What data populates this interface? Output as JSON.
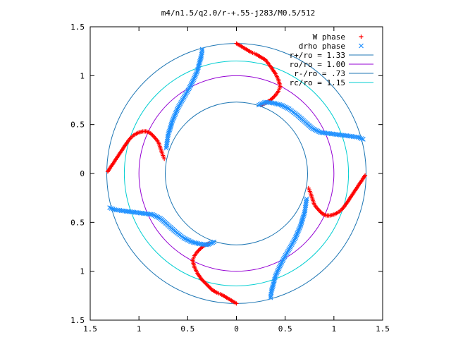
{
  "chart_data": {
    "type": "scatter",
    "title": "m4/n1.5/q2.0/r-+.55-j283/M0.5/512",
    "xlabel": "",
    "ylabel": "",
    "xlim": [
      -1.5,
      1.5
    ],
    "ylim": [
      -1.5,
      1.5
    ],
    "x_tick_values": [
      -1.5,
      -1,
      -0.5,
      0,
      0.5,
      1,
      1.5
    ],
    "x_tick_labels": [
      "1.5",
      "1",
      "0.5",
      "0",
      "0.5",
      "1",
      "1.5"
    ],
    "y_tick_values": [
      1.5,
      1,
      0.5,
      0,
      -0.5,
      -1,
      -1.5
    ],
    "y_tick_labels": [
      "1.5",
      "1",
      "0.5",
      "0",
      "0.5",
      "1",
      "1.5"
    ],
    "grid": false,
    "legend_position": "top-right",
    "series": [
      {
        "name": "W phase",
        "kind": "points",
        "marker": "plus",
        "color": "#ff0000",
        "arms": [
          {
            "x": [
              0.0,
              0.05,
              0.1,
              0.15,
              0.2,
              0.25,
              0.3,
              0.33,
              0.36,
              0.4,
              0.43,
              0.45,
              0.43,
              0.4,
              0.36,
              0.3,
              0.25
            ],
            "y": [
              1.33,
              1.3,
              1.27,
              1.24,
              1.22,
              1.19,
              1.16,
              1.12,
              1.08,
              1.02,
              0.96,
              0.89,
              0.84,
              0.8,
              0.76,
              0.72,
              0.7
            ]
          },
          {
            "x": [
              1.32,
              1.28,
              1.24,
              1.2,
              1.16,
              1.12,
              1.08,
              1.04,
              1.0,
              0.96,
              0.92,
              0.88,
              0.84,
              0.8,
              0.78,
              0.76,
              0.74
            ],
            "y": [
              -0.02,
              -0.08,
              -0.14,
              -0.2,
              -0.26,
              -0.32,
              -0.37,
              -0.4,
              -0.42,
              -0.43,
              -0.43,
              -0.41,
              -0.37,
              -0.32,
              -0.26,
              -0.2,
              -0.15
            ]
          },
          {
            "x": [
              0.0,
              -0.05,
              -0.1,
              -0.15,
              -0.2,
              -0.25,
              -0.28,
              -0.32,
              -0.36,
              -0.4,
              -0.43,
              -0.45,
              -0.43,
              -0.4,
              -0.36,
              -0.32,
              -0.28
            ],
            "y": [
              -1.33,
              -1.3,
              -1.27,
              -1.24,
              -1.22,
              -1.19,
              -1.16,
              -1.12,
              -1.08,
              -1.02,
              -0.96,
              -0.89,
              -0.84,
              -0.8,
              -0.76,
              -0.73,
              -0.72
            ]
          },
          {
            "x": [
              -1.32,
              -1.28,
              -1.24,
              -1.2,
              -1.16,
              -1.12,
              -1.08,
              -1.04,
              -1.0,
              -0.96,
              -0.92,
              -0.88,
              -0.84,
              -0.8,
              -0.78,
              -0.76,
              -0.74
            ],
            "y": [
              0.02,
              0.08,
              0.14,
              0.2,
              0.26,
              0.32,
              0.37,
              0.4,
              0.42,
              0.43,
              0.43,
              0.41,
              0.37,
              0.32,
              0.26,
              0.2,
              0.15
            ]
          }
        ]
      },
      {
        "name": "drho phase",
        "kind": "points",
        "marker": "cross",
        "color": "#1e90ff",
        "arms": [
          {
            "x": [
              -0.35,
              -0.36,
              -0.38,
              -0.4,
              -0.44,
              -0.48,
              -0.52,
              -0.56,
              -0.6,
              -0.63,
              -0.66,
              -0.68,
              -0.7,
              -0.71,
              -0.72
            ],
            "y": [
              1.27,
              1.2,
              1.13,
              1.05,
              0.96,
              0.88,
              0.81,
              0.74,
              0.67,
              0.6,
              0.53,
              0.46,
              0.4,
              0.33,
              0.26
            ]
          },
          {
            "x": [
              0.23,
              0.3,
              0.38,
              0.46,
              0.54,
              0.62,
              0.7,
              0.78,
              0.86,
              0.94,
              1.02,
              1.1,
              1.18,
              1.25,
              1.3
            ],
            "y": [
              0.7,
              0.73,
              0.72,
              0.7,
              0.66,
              0.6,
              0.53,
              0.46,
              0.42,
              0.41,
              0.4,
              0.39,
              0.38,
              0.37,
              0.35
            ]
          },
          {
            "x": [
              0.35,
              0.36,
              0.38,
              0.4,
              0.44,
              0.48,
              0.52,
              0.56,
              0.6,
              0.63,
              0.66,
              0.68,
              0.7,
              0.71,
              0.72
            ],
            "y": [
              -1.27,
              -1.2,
              -1.13,
              -1.05,
              -0.96,
              -0.88,
              -0.81,
              -0.74,
              -0.67,
              -0.6,
              -0.53,
              -0.46,
              -0.4,
              -0.33,
              -0.26
            ]
          },
          {
            "x": [
              -0.23,
              -0.3,
              -0.38,
              -0.46,
              -0.54,
              -0.62,
              -0.7,
              -0.78,
              -0.86,
              -0.94,
              -1.02,
              -1.1,
              -1.18,
              -1.25,
              -1.3
            ],
            "y": [
              -0.7,
              -0.73,
              -0.72,
              -0.7,
              -0.66,
              -0.6,
              -0.53,
              -0.46,
              -0.42,
              -0.41,
              -0.4,
              -0.39,
              -0.38,
              -0.37,
              -0.35
            ]
          }
        ]
      },
      {
        "name": "r+/ro = 1.33",
        "kind": "circle",
        "radius": 1.33,
        "color": "#1f77b4"
      },
      {
        "name": "ro/ro = 1.00",
        "kind": "circle",
        "radius": 1.0,
        "color": "#9400d3"
      },
      {
        "name": "r-/ro = .73",
        "kind": "circle",
        "radius": 0.73,
        "color": "#1f77b4"
      },
      {
        "name": "rc/ro = 1.15",
        "kind": "circle",
        "radius": 1.15,
        "color": "#00ced1"
      }
    ]
  }
}
